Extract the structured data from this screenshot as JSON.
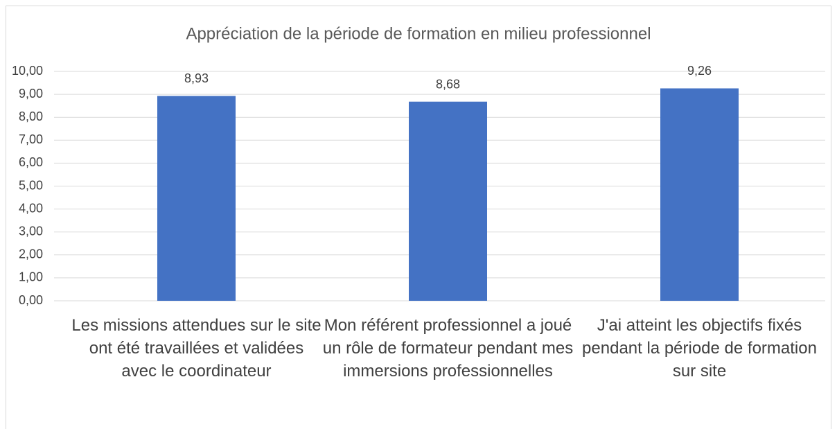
{
  "chart_data": {
    "type": "bar",
    "title": "Appréciation de la période de formation en milieu professionnel",
    "categories": [
      "Les missions attendues sur le site ont été travaillées et validées avec le coordinateur",
      "Mon référent professionnel a joué un rôle de formateur pendant mes immersions professionnelles",
      "J'ai atteint les objectifs fixés pendant la période de formation sur site"
    ],
    "values": [
      8.93,
      8.68,
      9.26
    ],
    "value_labels": [
      "8,93",
      "8,68",
      "9,26"
    ],
    "color": "#4472c4",
    "ylim": [
      0,
      10
    ],
    "yticks": [
      {
        "value": 0,
        "label": "0,00"
      },
      {
        "value": 1,
        "label": "1,00"
      },
      {
        "value": 2,
        "label": "2,00"
      },
      {
        "value": 3,
        "label": "3,00"
      },
      {
        "value": 4,
        "label": "4,00"
      },
      {
        "value": 5,
        "label": "5,00"
      },
      {
        "value": 6,
        "label": "6,00"
      },
      {
        "value": 7,
        "label": "7,00"
      },
      {
        "value": 8,
        "label": "8,00"
      },
      {
        "value": 9,
        "label": "9,00"
      },
      {
        "value": 10,
        "label": "10,00"
      }
    ],
    "grid": true
  }
}
